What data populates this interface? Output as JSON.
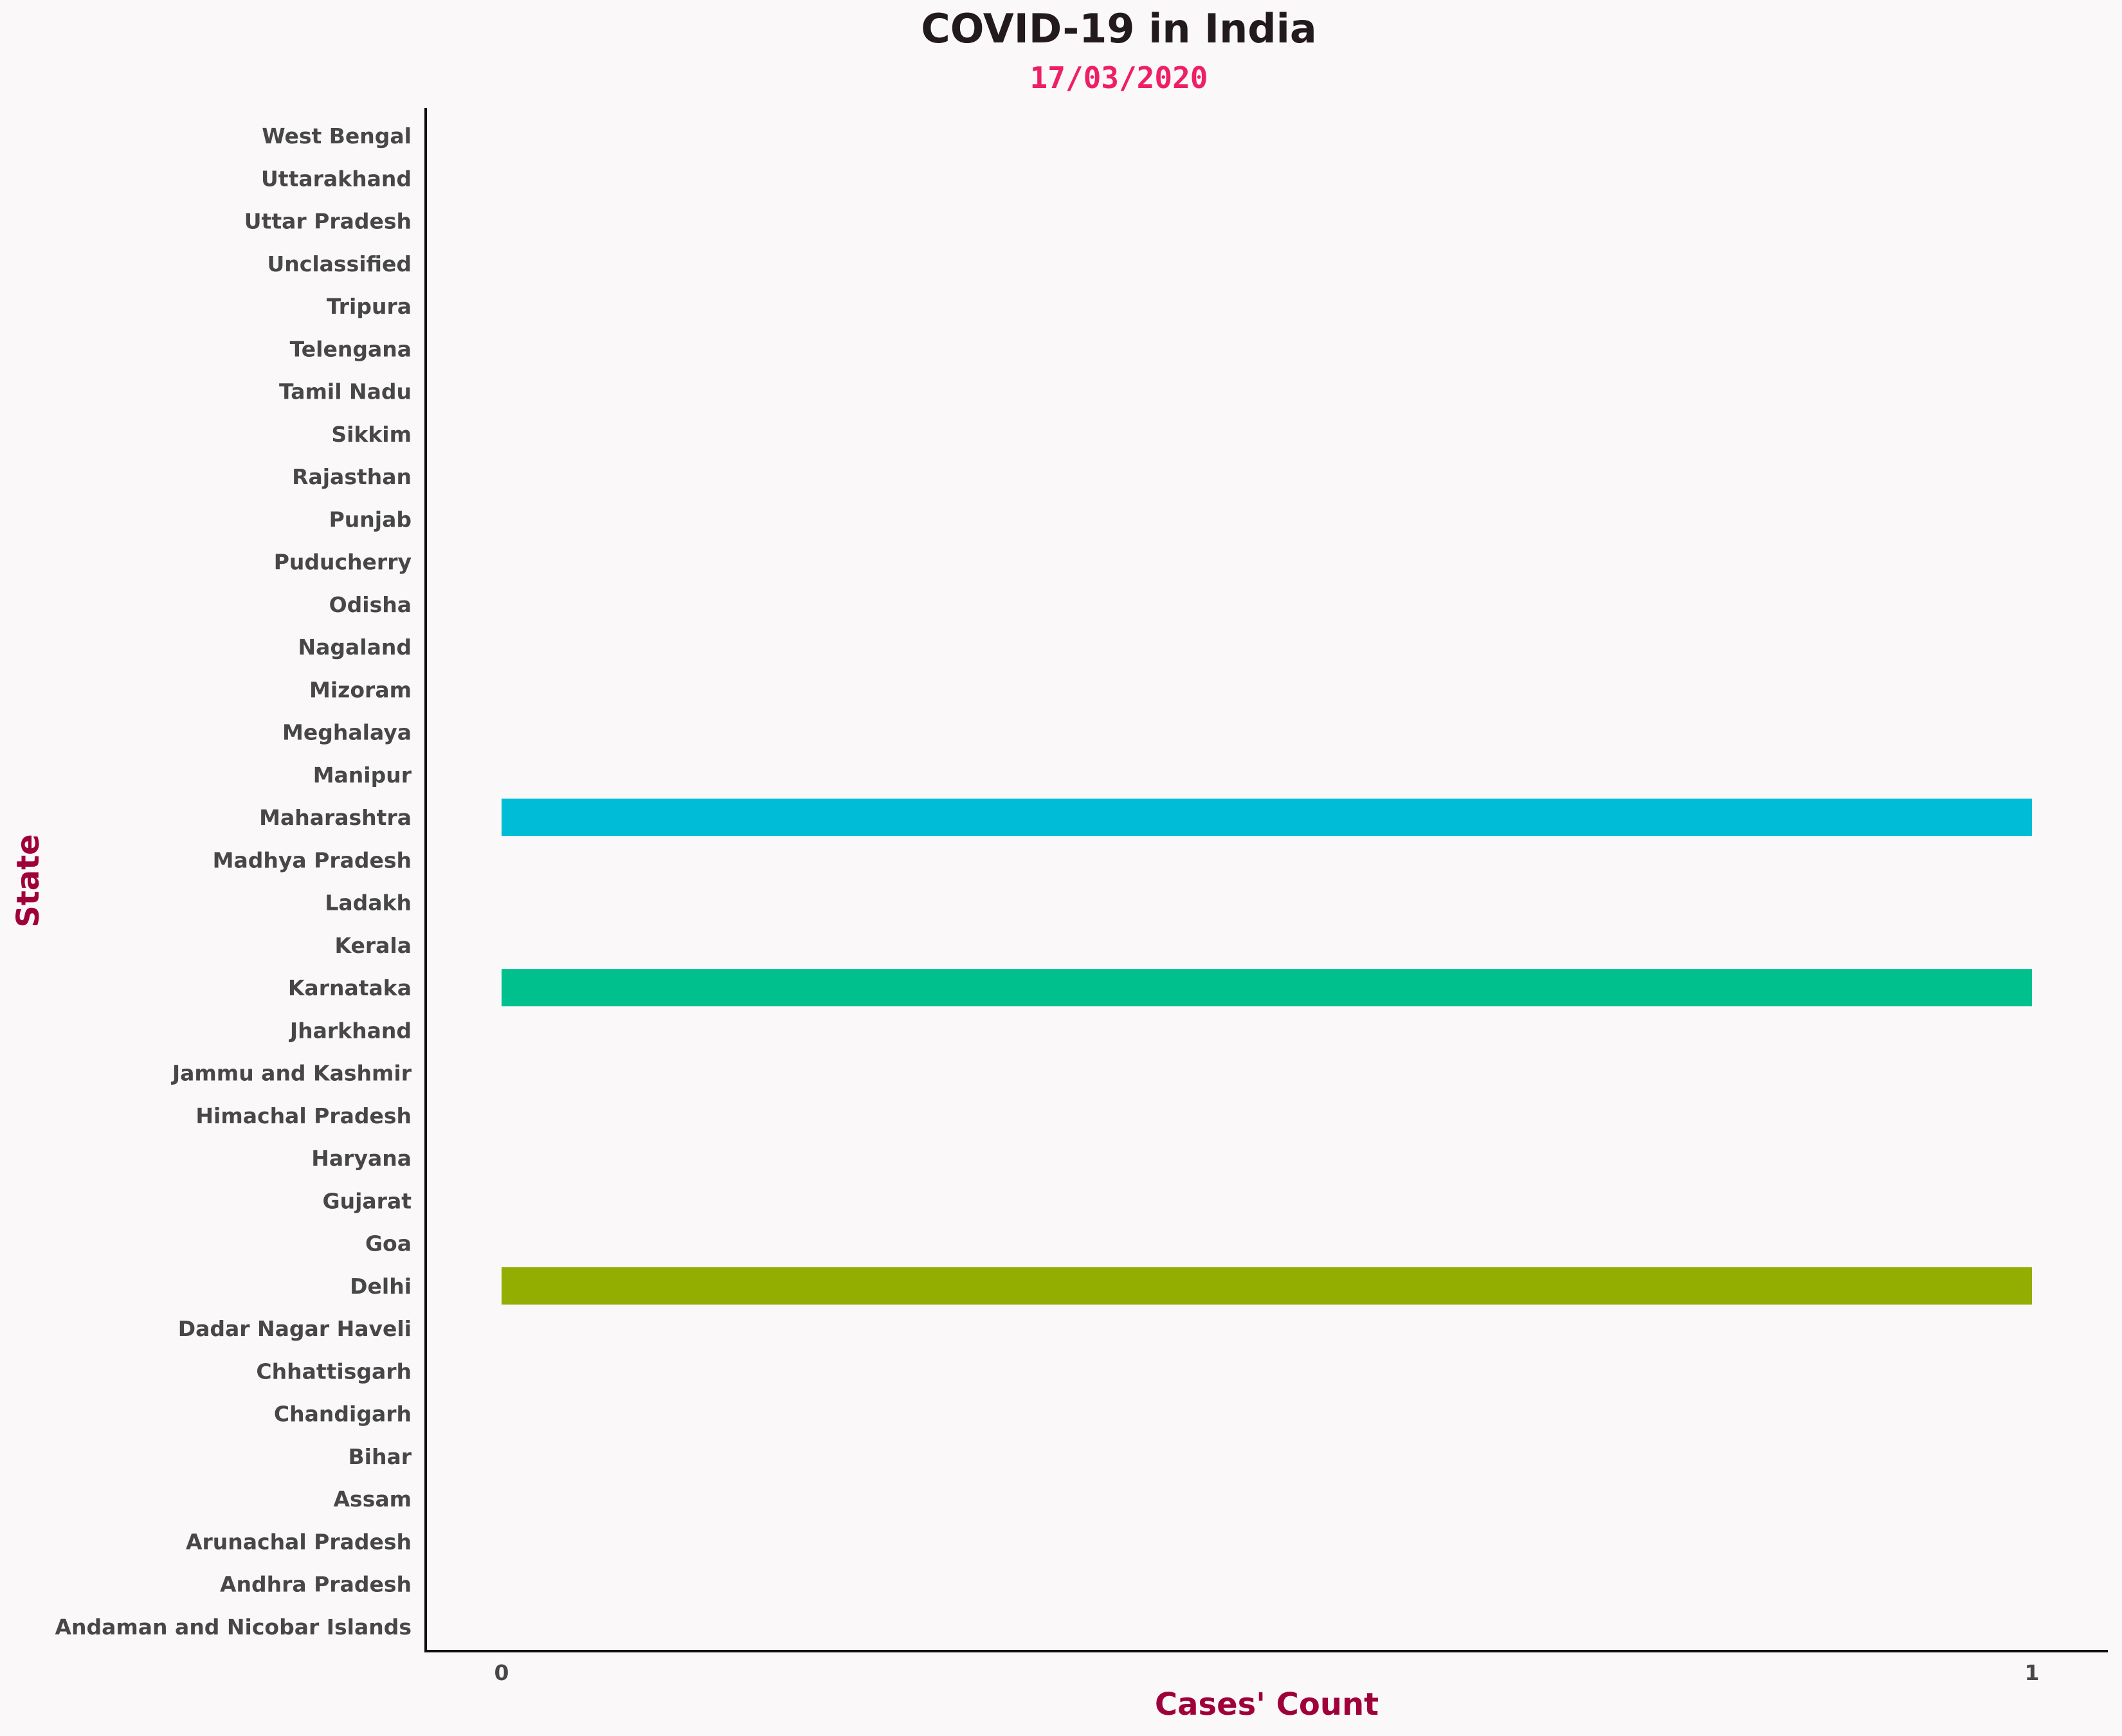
{
  "chart_data": {
    "type": "bar",
    "orientation": "horizontal",
    "title": "COVID-19 in India",
    "subtitle": "17/03/2020",
    "xlabel": "Cases' Count",
    "ylabel": "State",
    "xlim": [
      0,
      1
    ],
    "xticks": [
      "0",
      "1"
    ],
    "grid": false,
    "categories": [
      "Andaman and Nicobar Islands",
      "Andhra Pradesh",
      "Arunachal Pradesh",
      "Assam",
      "Bihar",
      "Chandigarh",
      "Chhattisgarh",
      "Dadar Nagar Haveli",
      "Delhi",
      "Goa",
      "Gujarat",
      "Haryana",
      "Himachal Pradesh",
      "Jammu and Kashmir",
      "Jharkhand",
      "Karnataka",
      "Kerala",
      "Ladakh",
      "Madhya Pradesh",
      "Maharashtra",
      "Manipur",
      "Meghalaya",
      "Mizoram",
      "Nagaland",
      "Odisha",
      "Puducherry",
      "Punjab",
      "Rajasthan",
      "Sikkim",
      "Tamil Nadu",
      "Telengana",
      "Tripura",
      "Unclassified",
      "Uttar Pradesh",
      "Uttarakhand",
      "West Bengal"
    ],
    "values": [
      0,
      0,
      0,
      0,
      0,
      0,
      0,
      0,
      1,
      0,
      0,
      0,
      0,
      0,
      0,
      1,
      0,
      0,
      0,
      1,
      0,
      0,
      0,
      0,
      0,
      0,
      0,
      0,
      0,
      0,
      0,
      0,
      0,
      0,
      0,
      0
    ],
    "bar_colors": {
      "Delhi": "#93ad00",
      "Karnataka": "#00c08d",
      "Maharashtra": "#00bcd6"
    },
    "colors": {
      "background": "#faf8f9",
      "title": "#231a1e",
      "subtitle": "#ef1f66",
      "axis_label": "#a0003a",
      "tick_label": "#474747"
    }
  }
}
